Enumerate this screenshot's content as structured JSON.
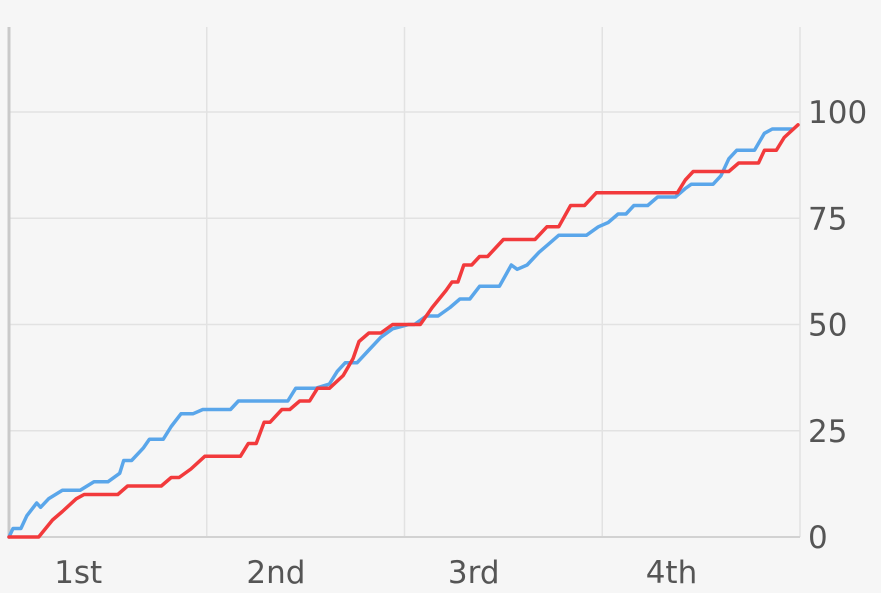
{
  "chart_data": {
    "type": "line",
    "x_categories": [
      "1st",
      "2nd",
      "3rd",
      "4th"
    ],
    "xlim": [
      0,
      4
    ],
    "ylim": [
      0,
      120
    ],
    "y_ticks": [
      0,
      25,
      50,
      75,
      100
    ],
    "y_axis_side": "right",
    "grid": true,
    "series": [
      {
        "color": "#5aa6ea",
        "points": [
          [
            0.0,
            0
          ],
          [
            0.02,
            2
          ],
          [
            0.06,
            2
          ],
          [
            0.09,
            5
          ],
          [
            0.14,
            8
          ],
          [
            0.16,
            7
          ],
          [
            0.2,
            9
          ],
          [
            0.27,
            11
          ],
          [
            0.36,
            11
          ],
          [
            0.43,
            13
          ],
          [
            0.5,
            13
          ],
          [
            0.56,
            15
          ],
          [
            0.58,
            18
          ],
          [
            0.62,
            18
          ],
          [
            0.68,
            21
          ],
          [
            0.71,
            23
          ],
          [
            0.78,
            23
          ],
          [
            0.82,
            26
          ],
          [
            0.87,
            29
          ],
          [
            0.93,
            29
          ],
          [
            0.98,
            30
          ],
          [
            1.12,
            30
          ],
          [
            1.16,
            32
          ],
          [
            1.41,
            32
          ],
          [
            1.45,
            35
          ],
          [
            1.47,
            35
          ],
          [
            1.55,
            35
          ],
          [
            1.62,
            36
          ],
          [
            1.66,
            39
          ],
          [
            1.7,
            41
          ],
          [
            1.76,
            41
          ],
          [
            1.82,
            44
          ],
          [
            1.88,
            47
          ],
          [
            1.94,
            49
          ],
          [
            2.02,
            50
          ],
          [
            2.05,
            50
          ],
          [
            2.11,
            52
          ],
          [
            2.17,
            52
          ],
          [
            2.23,
            54
          ],
          [
            2.28,
            56
          ],
          [
            2.33,
            56
          ],
          [
            2.38,
            59
          ],
          [
            2.48,
            59
          ],
          [
            2.54,
            64
          ],
          [
            2.57,
            63
          ],
          [
            2.62,
            64
          ],
          [
            2.68,
            67
          ],
          [
            2.73,
            69
          ],
          [
            2.78,
            71
          ],
          [
            2.92,
            71
          ],
          [
            2.98,
            73
          ],
          [
            3.03,
            74
          ],
          [
            3.08,
            76
          ],
          [
            3.12,
            76
          ],
          [
            3.16,
            78
          ],
          [
            3.23,
            78
          ],
          [
            3.28,
            80
          ],
          [
            3.37,
            80
          ],
          [
            3.42,
            82
          ],
          [
            3.45,
            83
          ],
          [
            3.56,
            83
          ],
          [
            3.6,
            85
          ],
          [
            3.64,
            89
          ],
          [
            3.68,
            91
          ],
          [
            3.77,
            91
          ],
          [
            3.82,
            95
          ],
          [
            3.86,
            96
          ],
          [
            3.96,
            96
          ]
        ]
      },
      {
        "color": "#f23a3c",
        "points": [
          [
            0.0,
            0
          ],
          [
            0.15,
            0
          ],
          [
            0.22,
            4
          ],
          [
            0.27,
            6
          ],
          [
            0.34,
            9
          ],
          [
            0.38,
            10
          ],
          [
            0.55,
            10
          ],
          [
            0.6,
            12
          ],
          [
            0.73,
            12
          ],
          [
            0.77,
            12
          ],
          [
            0.82,
            14
          ],
          [
            0.86,
            14
          ],
          [
            0.92,
            16
          ],
          [
            0.99,
            19
          ],
          [
            1.06,
            19
          ],
          [
            1.17,
            19
          ],
          [
            1.21,
            22
          ],
          [
            1.25,
            22
          ],
          [
            1.29,
            27
          ],
          [
            1.32,
            27
          ],
          [
            1.38,
            30
          ],
          [
            1.42,
            30
          ],
          [
            1.47,
            32
          ],
          [
            1.52,
            32
          ],
          [
            1.56,
            35
          ],
          [
            1.62,
            35
          ],
          [
            1.69,
            38
          ],
          [
            1.74,
            42
          ],
          [
            1.77,
            46
          ],
          [
            1.82,
            48
          ],
          [
            1.88,
            48
          ],
          [
            1.94,
            50
          ],
          [
            2.08,
            50
          ],
          [
            2.14,
            54
          ],
          [
            2.21,
            58
          ],
          [
            2.24,
            60
          ],
          [
            2.27,
            60
          ],
          [
            2.3,
            64
          ],
          [
            2.34,
            64
          ],
          [
            2.38,
            66
          ],
          [
            2.42,
            66
          ],
          [
            2.46,
            68
          ],
          [
            2.5,
            70
          ],
          [
            2.66,
            70
          ],
          [
            2.72,
            73
          ],
          [
            2.78,
            73
          ],
          [
            2.84,
            78
          ],
          [
            2.91,
            78
          ],
          [
            2.97,
            81
          ],
          [
            3.13,
            81
          ],
          [
            3.3,
            81
          ],
          [
            3.38,
            81
          ],
          [
            3.42,
            84
          ],
          [
            3.46,
            86
          ],
          [
            3.64,
            86
          ],
          [
            3.69,
            88
          ],
          [
            3.79,
            88
          ],
          [
            3.82,
            91
          ],
          [
            3.88,
            91
          ],
          [
            3.92,
            94
          ],
          [
            3.99,
            97
          ]
        ]
      }
    ]
  }
}
